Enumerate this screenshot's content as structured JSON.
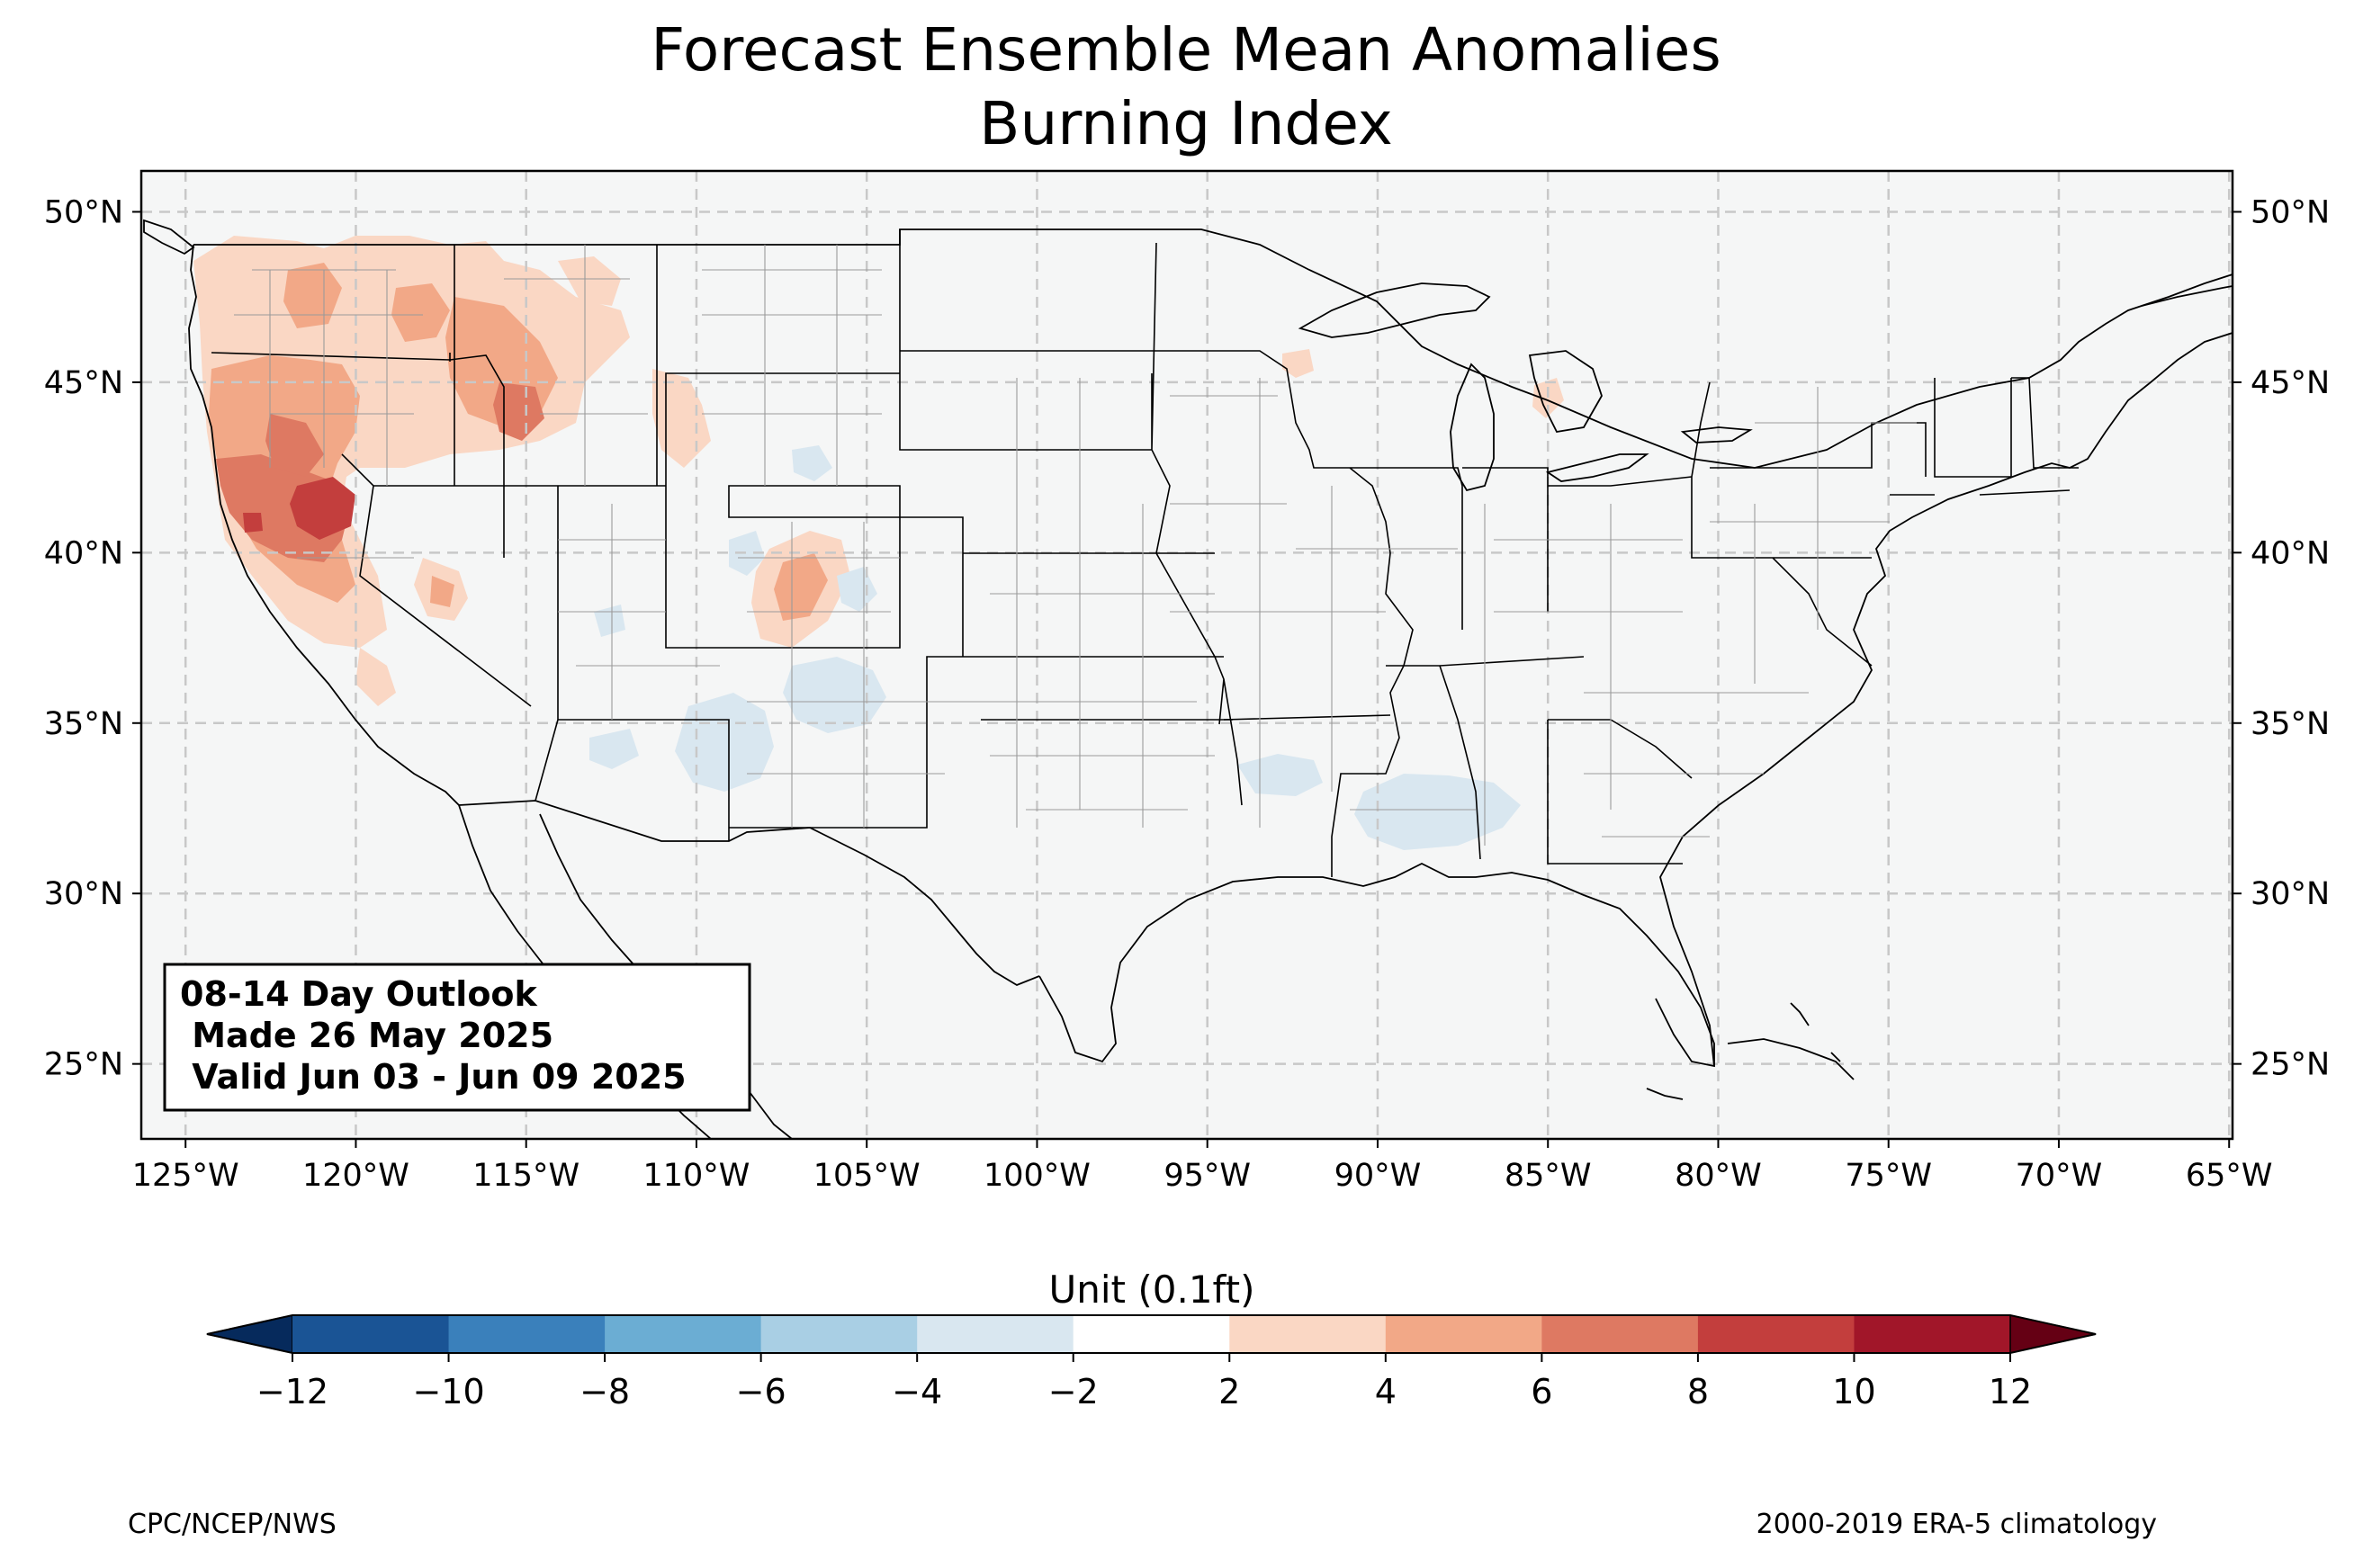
{
  "title": {
    "line1": "Forecast Ensemble Mean Anomalies",
    "line2": "Burning Index"
  },
  "map": {
    "projection": "PlateCarree",
    "lon_range": [
      -126.3,
      -64.9
    ],
    "lat_range": [
      22.8,
      51.2
    ],
    "background_color": "#f5f6f6",
    "gridlines": true,
    "lon_ticks": [
      {
        "value": -125,
        "label": "125°W"
      },
      {
        "value": -120,
        "label": "120°W"
      },
      {
        "value": -115,
        "label": "115°W"
      },
      {
        "value": -110,
        "label": "110°W"
      },
      {
        "value": -105,
        "label": "105°W"
      },
      {
        "value": -100,
        "label": "100°W"
      },
      {
        "value": -95,
        "label": "95°W"
      },
      {
        "value": -90,
        "label": "90°W"
      },
      {
        "value": -85,
        "label": "85°W"
      },
      {
        "value": -80,
        "label": "80°W"
      },
      {
        "value": -75,
        "label": "75°W"
      },
      {
        "value": -70,
        "label": "70°W"
      },
      {
        "value": -65,
        "label": "65°W"
      }
    ],
    "lat_ticks": [
      {
        "value": 50,
        "label": "50°N"
      },
      {
        "value": 45,
        "label": "45°N"
      },
      {
        "value": 40,
        "label": "40°N"
      },
      {
        "value": 35,
        "label": "35°N"
      },
      {
        "value": 30,
        "label": "30°N"
      },
      {
        "value": 25,
        "label": "25°N"
      }
    ],
    "anomaly_regions": [
      {
        "region": "Pacific Northwest (WA/OR)",
        "level": 4
      },
      {
        "region": "Oregon",
        "level": 6
      },
      {
        "region": "Northern California / NW Nevada",
        "level": 8
      },
      {
        "region": "NE California core",
        "level": 10
      },
      {
        "region": "Idaho / SW Montana",
        "level": 4
      },
      {
        "region": "Central Idaho",
        "level": 6
      },
      {
        "region": "Central Colorado",
        "level": 4
      },
      {
        "region": "Southern Arizona / New Mexico",
        "level": -2
      },
      {
        "region": "Mississippi / Alabama",
        "level": -2
      },
      {
        "region": "Colorado / Wyoming spots",
        "level": -2
      }
    ]
  },
  "info_box": {
    "line1": "08-14 Day Outlook",
    "line2": " Made 26 May 2025",
    "line3": " Valid Jun 03 - Jun 09 2025"
  },
  "colorbar": {
    "label": "Unit (0.1ft)",
    "levels": [
      -12,
      -10,
      -8,
      -6,
      -4,
      -2,
      2,
      4,
      6,
      8,
      10,
      12
    ],
    "tick_labels": [
      "−12",
      "−10",
      "−8",
      "−6",
      "−4",
      "−2",
      "2",
      "4",
      "6",
      "8",
      "10",
      "12"
    ],
    "colors": [
      "#1a5495",
      "#3a80bb",
      "#6badd3",
      "#a9cfe4",
      "#d9e7f0",
      "#ffffff",
      "#fad7c4",
      "#f2a887",
      "#de7962",
      "#c33e3d",
      "#a11629"
    ],
    "under_color": "#062a5c",
    "over_color": "#650014"
  },
  "footer": {
    "left": "CPC/NCEP/NWS",
    "right": "2000-2019 ERA-5 climatology"
  }
}
